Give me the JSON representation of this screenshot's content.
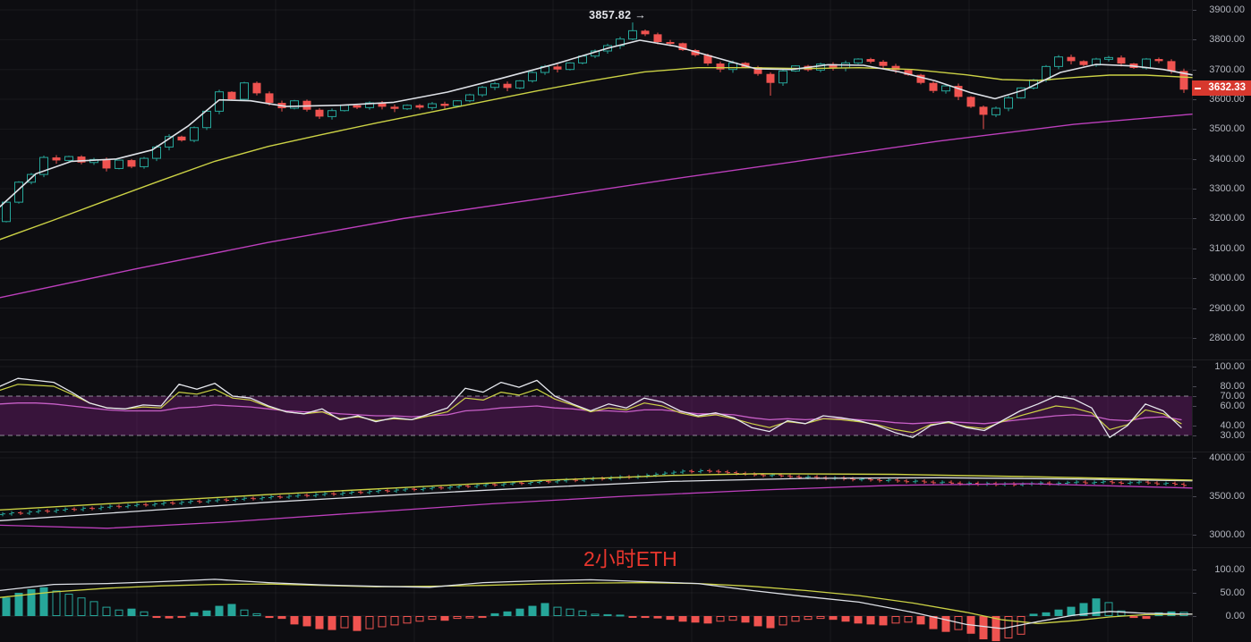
{
  "watermark": "2小时ETH",
  "main": {
    "annotation": "3857.82 →",
    "last_price_label": "3632.33"
  },
  "colors": {
    "background": "#0d0d11",
    "up": "#26a69a",
    "down": "#ef5350",
    "ma_fast": "#dde0e6",
    "ma_mid": "#cbd145",
    "ma_slow": "#bc3fbc",
    "rsi_white": "#e6e8ee",
    "rsi_yellow": "#cbd145",
    "rsi_magenta": "#c75fc7",
    "band_fill": "rgba(170,40,170,0.28)",
    "band_dash": "rgba(220,220,230,0.6)",
    "badge": "#d7382e",
    "axis_text": "#b2b5be",
    "watermark_color": "#e8362d",
    "grid": "rgba(255,255,255,0.05)",
    "separator": "rgba(255,255,255,0.08)"
  },
  "chart_data": [
    {
      "panel": "price",
      "type": "candlestick",
      "y_axis": [
        3900,
        3800,
        3700,
        3600,
        3500,
        3400,
        3300,
        3200,
        3100,
        3000,
        2900,
        2800
      ],
      "first_open": 3190,
      "closes": [
        3255,
        3322,
        3348,
        3405,
        3395,
        3408,
        3388,
        3398,
        3368,
        3396,
        3374,
        3402,
        3440,
        3475,
        3462,
        3505,
        3560,
        3625,
        3600,
        3655,
        3620,
        3588,
        3570,
        3595,
        3565,
        3542,
        3562,
        3580,
        3572,
        3588,
        3575,
        3568,
        3580,
        3572,
        3585,
        3578,
        3595,
        3615,
        3640,
        3652,
        3638,
        3662,
        3690,
        3710,
        3700,
        3722,
        3745,
        3762,
        3780,
        3802,
        3830,
        3818,
        3792,
        3788,
        3765,
        3748,
        3720,
        3700,
        3722,
        3708,
        3685,
        3655,
        3695,
        3712,
        3698,
        3718,
        3705,
        3722,
        3735,
        3726,
        3712,
        3698,
        3682,
        3655,
        3628,
        3645,
        3608,
        3575,
        3548,
        3570,
        3605,
        3638,
        3665,
        3710,
        3742,
        3728,
        3715,
        3735,
        3740,
        3720,
        3705,
        3735,
        3728,
        3695,
        3632.33
      ],
      "peak": {
        "index": 50,
        "high": 3857.82
      },
      "long_wick_lows": {
        "61": 3612,
        "78": 3500
      },
      "last_price": 3632.33,
      "ma_fast": [
        [
          0,
          3240
        ],
        [
          40,
          3350
        ],
        [
          80,
          3392
        ],
        [
          130,
          3400
        ],
        [
          170,
          3430
        ],
        [
          210,
          3510
        ],
        [
          245,
          3598
        ],
        [
          280,
          3595
        ],
        [
          320,
          3576
        ],
        [
          380,
          3580
        ],
        [
          440,
          3590
        ],
        [
          500,
          3624
        ],
        [
          560,
          3670
        ],
        [
          620,
          3718
        ],
        [
          680,
          3772
        ],
        [
          715,
          3798
        ],
        [
          755,
          3778
        ],
        [
          800,
          3740
        ],
        [
          845,
          3702
        ],
        [
          885,
          3700
        ],
        [
          925,
          3716
        ],
        [
          965,
          3714
        ],
        [
          1005,
          3692
        ],
        [
          1045,
          3662
        ],
        [
          1085,
          3622
        ],
        [
          1112,
          3602
        ],
        [
          1145,
          3632
        ],
        [
          1185,
          3690
        ],
        [
          1225,
          3717
        ],
        [
          1265,
          3712
        ],
        [
          1300,
          3700
        ],
        [
          1332,
          3682
        ]
      ],
      "ma_mid": [
        [
          0,
          3130
        ],
        [
          60,
          3195
        ],
        [
          120,
          3262
        ],
        [
          180,
          3328
        ],
        [
          240,
          3392
        ],
        [
          300,
          3442
        ],
        [
          360,
          3482
        ],
        [
          420,
          3520
        ],
        [
          480,
          3556
        ],
        [
          540,
          3592
        ],
        [
          600,
          3628
        ],
        [
          660,
          3662
        ],
        [
          720,
          3692
        ],
        [
          780,
          3706
        ],
        [
          840,
          3706
        ],
        [
          900,
          3703
        ],
        [
          960,
          3706
        ],
        [
          1020,
          3700
        ],
        [
          1080,
          3682
        ],
        [
          1120,
          3666
        ],
        [
          1160,
          3663
        ],
        [
          1200,
          3673
        ],
        [
          1240,
          3681
        ],
        [
          1280,
          3681
        ],
        [
          1332,
          3673
        ]
      ],
      "ma_slow": [
        [
          0,
          2935
        ],
        [
          150,
          3030
        ],
        [
          300,
          3120
        ],
        [
          450,
          3200
        ],
        [
          600,
          3265
        ],
        [
          750,
          3332
        ],
        [
          900,
          3396
        ],
        [
          1050,
          3460
        ],
        [
          1200,
          3516
        ],
        [
          1332,
          3550
        ]
      ]
    },
    {
      "panel": "oscillator",
      "type": "line",
      "y_axis": [
        100,
        80,
        70,
        60,
        40,
        30
      ],
      "band": [
        30,
        70
      ],
      "step": 20,
      "white": [
        80,
        88,
        86,
        84,
        74,
        63,
        58,
        57,
        61,
        60,
        82,
        77,
        83,
        70,
        68,
        60,
        54,
        52,
        57,
        46,
        50,
        44,
        48,
        46,
        52,
        58,
        78,
        74,
        84,
        79,
        86,
        70,
        62,
        55,
        62,
        58,
        68,
        64,
        55,
        50,
        53,
        48,
        38,
        34,
        45,
        42,
        50,
        48,
        45,
        40,
        33,
        28,
        40,
        44,
        38,
        35,
        45,
        55,
        62,
        70,
        67,
        58,
        28,
        40,
        62,
        55,
        38
      ],
      "yellow": [
        76,
        82,
        81,
        80,
        72,
        63,
        58,
        57,
        59,
        58,
        74,
        72,
        77,
        68,
        66,
        59,
        54,
        52,
        54,
        47,
        49,
        45,
        47,
        46,
        50,
        54,
        68,
        66,
        74,
        71,
        77,
        67,
        61,
        54,
        58,
        56,
        63,
        60,
        53,
        49,
        51,
        47,
        42,
        38,
        44,
        42,
        47,
        46,
        44,
        41,
        36,
        33,
        41,
        43,
        39,
        37,
        44,
        50,
        55,
        60,
        58,
        53,
        36,
        41,
        56,
        52,
        42
      ],
      "magenta": [
        62,
        63,
        63,
        62,
        60,
        58,
        56,
        55,
        55,
        55,
        58,
        59,
        61,
        60,
        59,
        57,
        55,
        54,
        54,
        52,
        51,
        50,
        50,
        49,
        50,
        51,
        55,
        56,
        58,
        59,
        60,
        58,
        57,
        55,
        55,
        54,
        56,
        56,
        54,
        52,
        52,
        51,
        48,
        46,
        47,
        46,
        47,
        47,
        46,
        45,
        43,
        42,
        43,
        44,
        43,
        42,
        44,
        46,
        48,
        50,
        51,
        50,
        46,
        45,
        48,
        49,
        46
      ]
    },
    {
      "panel": "mini_price",
      "type": "bar",
      "y_axis": [
        4000,
        3500,
        3000
      ],
      "step": 10,
      "first_open": 3260,
      "closes": [
        3268,
        3282,
        3276,
        3295,
        3308,
        3302,
        3318,
        3330,
        3324,
        3342,
        3338,
        3355,
        3368,
        3362,
        3378,
        3390,
        3384,
        3398,
        3412,
        3406,
        3420,
        3432,
        3426,
        3440,
        3452,
        3446,
        3460,
        3472,
        3466,
        3480,
        3492,
        3486,
        3500,
        3512,
        3506,
        3520,
        3532,
        3526,
        3540,
        3552,
        3546,
        3560,
        3572,
        3566,
        3580,
        3592,
        3586,
        3600,
        3612,
        3606,
        3620,
        3632,
        3626,
        3640,
        3652,
        3646,
        3660,
        3672,
        3666,
        3680,
        3692,
        3686,
        3700,
        3712,
        3706,
        3720,
        3732,
        3726,
        3740,
        3752,
        3746,
        3760,
        3772,
        3786,
        3800,
        3812,
        3826,
        3820,
        3832,
        3824,
        3816,
        3806,
        3796,
        3788,
        3778,
        3768,
        3776,
        3764,
        3754,
        3744,
        3752,
        3740,
        3730,
        3738,
        3726,
        3716,
        3722,
        3712,
        3702,
        3710,
        3698,
        3688,
        3696,
        3684,
        3674,
        3682,
        3670,
        3660,
        3668,
        3656,
        3664,
        3652,
        3660,
        3648,
        3656,
        3664,
        3672,
        3660,
        3668,
        3676,
        3684,
        3672,
        3680,
        3688,
        3676,
        3668,
        3676,
        3684,
        3672,
        3660,
        3668,
        3656,
        3640
      ],
      "ma_fast": [
        [
          0,
          3180
        ],
        [
          150,
          3300
        ],
        [
          300,
          3420
        ],
        [
          450,
          3520
        ],
        [
          600,
          3612
        ],
        [
          750,
          3692
        ],
        [
          900,
          3732
        ],
        [
          1050,
          3740
        ],
        [
          1200,
          3724
        ],
        [
          1332,
          3700
        ]
      ],
      "ma_mid": [
        [
          0,
          3320
        ],
        [
          150,
          3420
        ],
        [
          300,
          3520
        ],
        [
          450,
          3612
        ],
        [
          600,
          3702
        ],
        [
          750,
          3770
        ],
        [
          850,
          3792
        ],
        [
          1000,
          3784
        ],
        [
          1150,
          3754
        ],
        [
          1332,
          3710
        ]
      ],
      "ma_slow": [
        [
          0,
          3120
        ],
        [
          120,
          3080
        ],
        [
          250,
          3160
        ],
        [
          400,
          3280
        ],
        [
          550,
          3400
        ],
        [
          700,
          3500
        ],
        [
          850,
          3580
        ],
        [
          1000,
          3642
        ],
        [
          1150,
          3662
        ],
        [
          1332,
          3606
        ]
      ]
    },
    {
      "panel": "macd",
      "type": "histogram",
      "y_axis": [
        100,
        50,
        0
      ],
      "values": [
        40,
        50,
        58,
        62,
        55,
        48,
        40,
        32,
        20,
        14,
        16,
        10,
        -4,
        -5,
        -4,
        8,
        12,
        22,
        26,
        14,
        6,
        -4,
        -6,
        -18,
        -22,
        -28,
        -30,
        -26,
        -32,
        -28,
        -24,
        -20,
        -16,
        -12,
        -8,
        -10,
        -6,
        -5,
        -4,
        6,
        10,
        16,
        22,
        28,
        20,
        16,
        12,
        5,
        4,
        3,
        -3,
        -4,
        -5,
        -8,
        -12,
        -14,
        -16,
        -12,
        -10,
        -14,
        -22,
        -26,
        -20,
        -12,
        -8,
        -6,
        -8,
        -12,
        -16,
        -18,
        -20,
        -16,
        -14,
        -18,
        -28,
        -34,
        -30,
        -38,
        -50,
        -54,
        -48,
        -40,
        5,
        8,
        14,
        20,
        28,
        38,
        30,
        12,
        -4,
        -6,
        8,
        10,
        9
      ],
      "macd_line": [
        [
          0,
          55
        ],
        [
          60,
          68
        ],
        [
          120,
          70
        ],
        [
          180,
          74
        ],
        [
          240,
          79
        ],
        [
          300,
          72
        ],
        [
          360,
          67
        ],
        [
          420,
          64
        ],
        [
          480,
          62
        ],
        [
          540,
          72
        ],
        [
          600,
          76
        ],
        [
          660,
          78
        ],
        [
          720,
          74
        ],
        [
          780,
          70
        ],
        [
          840,
          55
        ],
        [
          900,
          42
        ],
        [
          960,
          30
        ],
        [
          1020,
          8
        ],
        [
          1080,
          -18
        ],
        [
          1120,
          -27
        ],
        [
          1160,
          -12
        ],
        [
          1200,
          2
        ],
        [
          1240,
          10
        ],
        [
          1280,
          6
        ],
        [
          1332,
          4
        ]
      ],
      "signal_line": [
        [
          0,
          40
        ],
        [
          60,
          52
        ],
        [
          120,
          60
        ],
        [
          180,
          65
        ],
        [
          240,
          68
        ],
        [
          300,
          69
        ],
        [
          360,
          66
        ],
        [
          420,
          63
        ],
        [
          480,
          64
        ],
        [
          540,
          66
        ],
        [
          600,
          69
        ],
        [
          660,
          71
        ],
        [
          720,
          72
        ],
        [
          780,
          70
        ],
        [
          840,
          64
        ],
        [
          900,
          55
        ],
        [
          960,
          44
        ],
        [
          1020,
          28
        ],
        [
          1080,
          8
        ],
        [
          1120,
          -8
        ],
        [
          1160,
          -16
        ],
        [
          1200,
          -10
        ],
        [
          1240,
          -2
        ],
        [
          1280,
          3
        ],
        [
          1332,
          4
        ]
      ]
    }
  ]
}
